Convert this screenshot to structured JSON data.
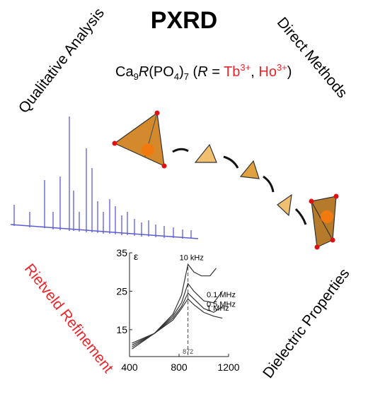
{
  "title": "PXRD",
  "labels": {
    "qualitative": "Qualitative Analysis",
    "direct": "Direct Methods",
    "rietveld": "Rietveld Refinement",
    "dielectric": "Dielectric Properties"
  },
  "formula": [
    {
      "text": "Ca"
    },
    {
      "text": "9",
      "sub": true
    },
    {
      "text": "R",
      "italic": true
    },
    {
      "text": "(PO"
    },
    {
      "text": "4",
      "sub": true
    },
    {
      "text": ")"
    },
    {
      "text": "7",
      "sub": true
    },
    {
      "text": " ("
    },
    {
      "text": "R",
      "italic": true
    },
    {
      "text": " = "
    },
    {
      "text": "Tb",
      "red": true
    },
    {
      "text": "3+",
      "sup": true,
      "red": true
    },
    {
      "text": ", "
    },
    {
      "text": "Ho",
      "red": true
    },
    {
      "text": "3+",
      "sup": true,
      "red": true
    },
    {
      "text": ")"
    }
  ],
  "dielectric_plot": {
    "y_label": "ε",
    "xlim": [
      400,
      1200
    ],
    "ylim": [
      8,
      35
    ],
    "xticks": [
      400,
      800,
      1200
    ],
    "yticks": [
      15,
      25,
      35
    ],
    "peak": 872,
    "series": [
      {
        "name": "10 kHz",
        "x": [
          420,
          600,
          750,
          820,
          872,
          920,
          980,
          1050,
          1100
        ],
        "values": [
          10,
          14,
          19,
          24,
          32,
          30,
          29,
          29,
          31
        ]
      },
      {
        "name": "0.1 MHz",
        "x": [
          420,
          600,
          750,
          820,
          872,
          920,
          1000,
          1080,
          1150
        ],
        "values": [
          10.5,
          14,
          18.5,
          22,
          27,
          25,
          22.5,
          22,
          25
        ]
      },
      {
        "name": "0.5 MHz",
        "x": [
          420,
          600,
          750,
          820,
          872,
          920,
          1000,
          1080,
          1150
        ],
        "values": [
          11,
          14,
          18,
          21,
          24.5,
          23,
          20.5,
          19.5,
          21
        ]
      },
      {
        "name": "1 MHz",
        "x": [
          420,
          600,
          750,
          820,
          872,
          920,
          1000,
          1080,
          1150
        ],
        "values": [
          11.5,
          14,
          17.5,
          20.5,
          23,
          21.5,
          19.5,
          18.5,
          18
        ]
      }
    ]
  }
}
